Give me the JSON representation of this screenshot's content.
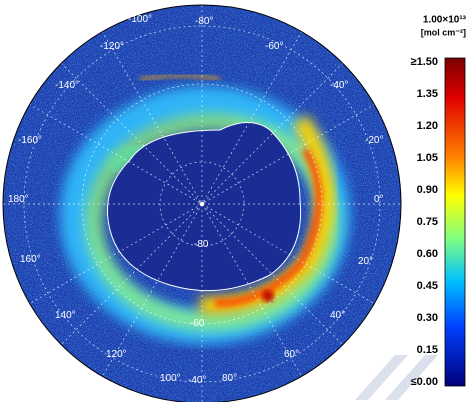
{
  "colorbar": {
    "title": "1.00×10¹³",
    "unit": "[mol cm⁻²]",
    "tick_labels": [
      "≥1.50",
      "1.35",
      "1.20",
      "1.05",
      "0.90",
      "0.75",
      "0.60",
      "0.45",
      "0.30",
      "0.15",
      "≤0.00"
    ]
  },
  "longitude_labels": [
    "-100°",
    "-80°",
    "-120°",
    "-60°",
    "-140°",
    "-40°",
    "-160°",
    "-20°",
    "180°",
    "0°",
    "160°",
    "20°",
    "140°",
    "40°",
    "120°",
    "60°",
    "100°",
    "-40°",
    "80°"
  ],
  "latitude_labels": [
    "-80",
    "-60"
  ]
}
